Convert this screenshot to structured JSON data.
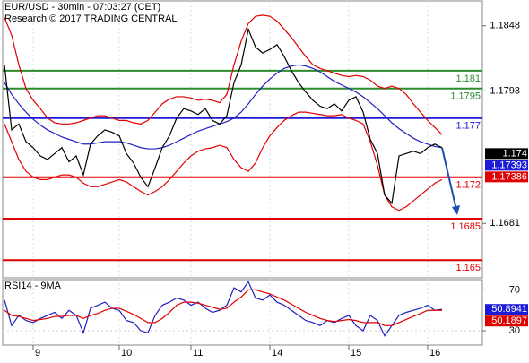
{
  "chart_data": [
    {
      "type": "line",
      "title": "EUR/USD - 30min - 07:03:27 (CET)",
      "subtitle": "Research © 2017 TRADING CENTRAL",
      "categories": [
        null,
        null,
        null,
        null,
        "9",
        null,
        null,
        null,
        null,
        null,
        null,
        null,
        null,
        null,
        null,
        null,
        "10",
        null,
        null,
        null,
        null,
        null,
        null,
        null,
        null,
        null,
        "11",
        null,
        null,
        null,
        null,
        null,
        null,
        null,
        null,
        null,
        null,
        "14",
        null,
        null,
        null,
        null,
        null,
        null,
        null,
        null,
        null,
        null,
        "15",
        null,
        null,
        null,
        null,
        null,
        null,
        null,
        null,
        null,
        null,
        "16",
        null,
        null
      ],
      "ylim": [
        1.1635,
        1.1869
      ],
      "yticks": [
        1.1848,
        1.1793,
        1.1681
      ],
      "series": [
        {
          "color": "#e00000",
          "values": [
            1.1855,
            1.184,
            1.1815,
            1.1795,
            1.1785,
            1.1778,
            1.177,
            1.1766,
            1.1765,
            1.1765,
            1.1766,
            1.1768,
            1.177,
            1.1772,
            1.1772,
            1.177,
            1.1768,
            1.1768,
            1.1766,
            1.1765,
            1.1768,
            1.1775,
            1.1782,
            1.1786,
            1.1788,
            1.1788,
            1.1787,
            1.1785,
            1.1786,
            1.1785,
            1.1783,
            1.179,
            1.1815,
            1.1835,
            1.185,
            1.1856,
            1.1857,
            1.1856,
            1.1852,
            1.1845,
            1.1838,
            1.183,
            1.1822,
            1.1815,
            1.1812,
            1.181,
            1.1808,
            1.1806,
            1.1805,
            1.1806,
            1.1805,
            1.1802,
            1.1797,
            1.1795,
            1.1797,
            1.1795,
            1.179,
            1.1782,
            1.1775,
            1.1768,
            1.1762,
            1.1756
          ]
        },
        {
          "color": "#e00000",
          "values": [
            1.1765,
            1.175,
            1.1735,
            1.1725,
            1.172,
            1.1718,
            1.1718,
            1.172,
            1.1722,
            1.1722,
            1.172,
            1.1715,
            1.1712,
            1.1712,
            1.1714,
            1.1716,
            1.1718,
            1.1716,
            1.1712,
            1.1708,
            1.1705,
            1.1708,
            1.1712,
            1.1718,
            1.1725,
            1.1732,
            1.1738,
            1.1742,
            1.1744,
            1.1745,
            1.1747,
            1.1745,
            1.1735,
            1.1728,
            1.1725,
            1.1732,
            1.1745,
            1.1755,
            1.1762,
            1.1768,
            1.1772,
            1.1775,
            1.1775,
            1.1774,
            1.1773,
            1.1772,
            1.1772,
            1.1773,
            1.177,
            1.1768,
            1.1765,
            1.175,
            1.173,
            1.1705,
            1.1695,
            1.1692,
            1.1695,
            1.17,
            1.1705,
            1.171,
            1.1715,
            1.1718
          ]
        },
        {
          "color": "#2020c0",
          "values": [
            1.18,
            1.179,
            1.1782,
            1.1775,
            1.1769,
            1.1764,
            1.176,
            1.1757,
            1.1754,
            1.1752,
            1.175,
            1.1748,
            1.1748,
            1.1749,
            1.175,
            1.175,
            1.175,
            1.1749,
            1.1747,
            1.1745,
            1.1744,
            1.1744,
            1.1745,
            1.1747,
            1.175,
            1.1753,
            1.1756,
            1.1759,
            1.1761,
            1.1763,
            1.1765,
            1.1767,
            1.177,
            1.1775,
            1.1782,
            1.179,
            1.1797,
            1.1803,
            1.1808,
            1.1812,
            1.1814,
            1.1815,
            1.1814,
            1.1812,
            1.1809,
            1.1805,
            1.1801,
            1.1798,
            1.1795,
            1.1792,
            1.1788,
            1.1783,
            1.1778,
            1.1772,
            1.1766,
            1.1761,
            1.1757,
            1.1753,
            1.175,
            1.1748,
            1.1746,
            1.1745
          ]
        },
        {
          "color": "#000000",
          "values": [
            1.1815,
            1.176,
            1.1765,
            1.175,
            1.1745,
            1.1738,
            1.1735,
            1.174,
            1.1745,
            1.1733,
            1.1738,
            1.1722,
            1.1748,
            1.1755,
            1.176,
            1.1758,
            1.1755,
            1.174,
            1.1732,
            1.172,
            1.1712,
            1.1728,
            1.1745,
            1.1755,
            1.177,
            1.1778,
            1.1776,
            1.1773,
            1.1778,
            1.1768,
            1.1765,
            1.1772,
            1.18,
            1.1815,
            1.1845,
            1.183,
            1.1825,
            1.1828,
            1.1832,
            1.1822,
            1.181,
            1.18,
            1.1792,
            1.1785,
            1.178,
            1.1778,
            1.1782,
            1.1776,
            1.1785,
            1.1788,
            1.1775,
            1.1752,
            1.174,
            1.1705,
            1.1698,
            1.1738,
            1.174,
            1.1742,
            1.174,
            1.1745,
            1.1748,
            1.1745
          ]
        }
      ],
      "levels": [
        {
          "value": 1.181,
          "color": "#2e8b2e"
        },
        {
          "value": 1.1795,
          "color": "#2e8b2e"
        },
        {
          "value": 1.177,
          "color": "#1c1cd6"
        },
        {
          "value": 1.172,
          "color": "#e00000"
        },
        {
          "value": 1.1685,
          "color": "#e00000"
        },
        {
          "value": 1.165,
          "color": "#e00000"
        }
      ],
      "tags": [
        {
          "value": 1.174,
          "color": "#000000"
        },
        {
          "value": 1.17393,
          "color": "#1c1cd6"
        },
        {
          "value": 1.17386,
          "color": "#e00000"
        }
      ],
      "projection_target": 1.1688,
      "projection_color": "#1c4fb0"
    },
    {
      "type": "line",
      "title": "RSI14 - 9MA",
      "ylim": [
        16,
        80
      ],
      "yticks": [
        70,
        30
      ],
      "series": [
        {
          "color": "#2020c0",
          "values": [
            60,
            35,
            45,
            40,
            38,
            42,
            45,
            48,
            42,
            50,
            45,
            28,
            52,
            55,
            58,
            52,
            50,
            40,
            38,
            30,
            28,
            45,
            55,
            58,
            62,
            60,
            55,
            58,
            52,
            48,
            50,
            55,
            72,
            68,
            78,
            62,
            60,
            65,
            58,
            55,
            50,
            45,
            40,
            38,
            35,
            40,
            38,
            42,
            45,
            35,
            30,
            45,
            40,
            25,
            35,
            45,
            48,
            50,
            52,
            55,
            50,
            51
          ]
        },
        {
          "color": "#e00000",
          "values": [
            50,
            45,
            44,
            42,
            40,
            41,
            42,
            44,
            44,
            45,
            45,
            42,
            45,
            47,
            50,
            52,
            52,
            49,
            46,
            42,
            38,
            38,
            42,
            48,
            55,
            58,
            58,
            57,
            55,
            53,
            51,
            52,
            58,
            63,
            70,
            70,
            68,
            66,
            63,
            60,
            56,
            52,
            48,
            45,
            42,
            40,
            39,
            40,
            41,
            40,
            38,
            38,
            38,
            35,
            35,
            38,
            41,
            44,
            47,
            50,
            50,
            50
          ]
        }
      ],
      "tags": [
        {
          "value": 50.8941,
          "color": "#1c1cd6"
        },
        {
          "value": 50.1897,
          "color": "#e00000"
        }
      ]
    }
  ]
}
